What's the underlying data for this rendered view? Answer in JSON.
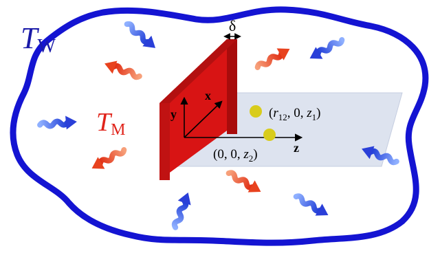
{
  "labels": {
    "t_wall_main": "T",
    "t_wall_sub": "W",
    "t_medium_main": "T",
    "t_medium_sub": "M",
    "delta": "δ",
    "axis_x": "x",
    "axis_y": "y",
    "axis_z": "z",
    "point1_open": "(",
    "point1_r": "r",
    "point1_r_sub": "12",
    "point1_mid": ", 0, ",
    "point1_z": "z",
    "point1_z_sub": "1",
    "point1_close": ")",
    "point2_open": "(0, 0, ",
    "point2_z": "z",
    "point2_z_sub": "2",
    "point2_close": ")"
  },
  "colors": {
    "wall": "#1414d2",
    "plate_front": "#d81414",
    "plate_side": "#a80c0c",
    "plane": "#dde3ef",
    "point": "#d8cc1c",
    "wall_label": "#1a1aa8",
    "medium_label": "#e0231a",
    "red_wave": "#e8421e",
    "blue_wave": "#2a3fd8"
  }
}
